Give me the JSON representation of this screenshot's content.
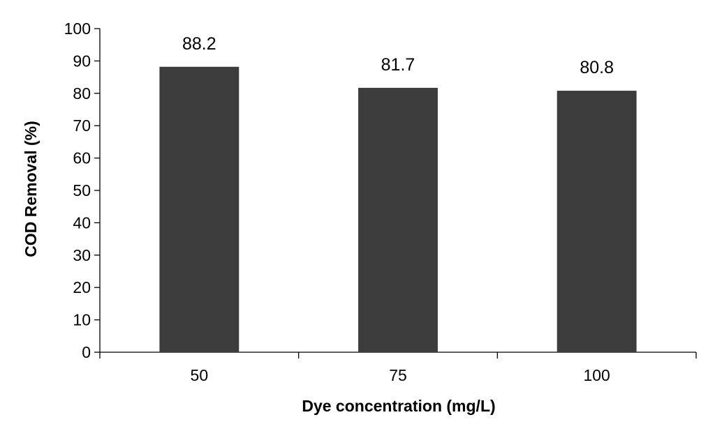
{
  "chart_data": {
    "type": "bar",
    "title": "",
    "xlabel": "Dye concentration (mg/L)",
    "ylabel": "COD Removal (%)",
    "categories": [
      "50",
      "75",
      "100"
    ],
    "values": [
      88.2,
      81.7,
      80.8
    ],
    "data_labels": [
      "88.2",
      "81.7",
      "80.8"
    ],
    "ylim": [
      0,
      100
    ],
    "yticks": [
      0,
      10,
      20,
      30,
      40,
      50,
      60,
      70,
      80,
      90,
      100
    ],
    "grid": false,
    "legend": "none",
    "bar_color": "#3c3c3c"
  }
}
